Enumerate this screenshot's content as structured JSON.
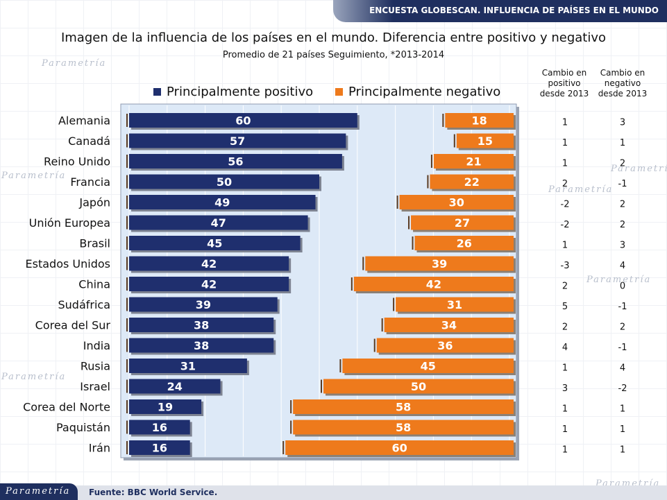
{
  "header": {
    "text": "ENCUESTA GLOBESCAN. INFLUENCIA DE PAÍSES EN EL MUNDO"
  },
  "footer": {
    "logo": "Parametría",
    "source": "Fuente: BBC World Service."
  },
  "watermark": "Parametría",
  "colors": {
    "positive": "#1f2f6e",
    "negative": "#ee7a1c",
    "header": "#1f2f5f",
    "panel": "#dde9f7"
  },
  "chart_data": {
    "type": "bar",
    "title": "Imagen de la influencia de los países en el mundo. Diferencia entre positivo y negativo",
    "subtitle": "Promedio de 21 países Seguimiento, *2013-2014",
    "xlim": [
      0,
      100
    ],
    "categories": [
      "Alemania",
      "Canadá",
      "Reino Unido",
      "Francia",
      "Japón",
      "Unión Europea",
      "Brasil",
      "Estados Unidos",
      "China",
      "Sudáfrica",
      "Corea del Sur",
      "India",
      "Rusia",
      "Israel",
      "Corea del Norte",
      "Paquistán",
      "Irán"
    ],
    "series": [
      {
        "name": "Principalmente positivo",
        "values": [
          60,
          57,
          56,
          50,
          49,
          47,
          45,
          42,
          42,
          39,
          38,
          38,
          31,
          24,
          19,
          16,
          16
        ]
      },
      {
        "name": "Principalmente negativo",
        "values": [
          18,
          15,
          21,
          22,
          30,
          27,
          26,
          39,
          42,
          31,
          34,
          36,
          45,
          50,
          58,
          58,
          60
        ]
      }
    ],
    "table": {
      "headers": [
        [
          "Cambio en",
          "positivo",
          "desde 2013"
        ],
        [
          "Cambio en",
          "negativo",
          "desde 2013"
        ]
      ],
      "positive_change": [
        "1",
        "1",
        "1",
        "2",
        "-2",
        "-2",
        "1",
        "-3",
        "2",
        "5",
        "2",
        "4",
        "1",
        "3",
        "1",
        "1",
        "1"
      ],
      "negative_change": [
        "3",
        "1",
        "2",
        "-1",
        "2",
        "2",
        "3",
        "4",
        "0",
        "-1",
        "2",
        "-1",
        "4",
        "-2",
        "1",
        "1",
        "1"
      ]
    }
  }
}
